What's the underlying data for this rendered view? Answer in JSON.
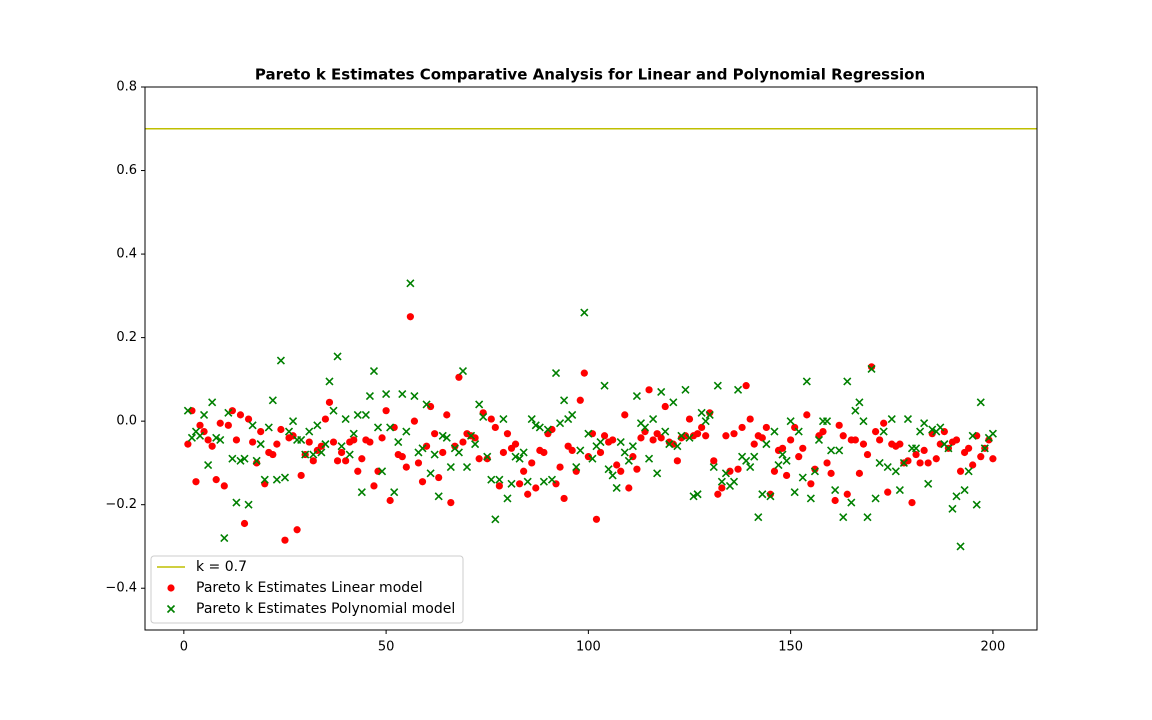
{
  "chart_data": {
    "type": "scatter",
    "title": "Pareto k Estimates Comparative Analysis for Linear and Polynomial Regression",
    "x": [
      1,
      2,
      3,
      4,
      5,
      6,
      7,
      8,
      9,
      10,
      11,
      12,
      13,
      14,
      15,
      16,
      17,
      18,
      19,
      20,
      21,
      22,
      23,
      24,
      25,
      26,
      27,
      28,
      29,
      30,
      31,
      32,
      33,
      34,
      35,
      36,
      37,
      38,
      39,
      40,
      41,
      42,
      43,
      44,
      45,
      46,
      47,
      48,
      49,
      50,
      51,
      52,
      53,
      54,
      55,
      56,
      57,
      58,
      59,
      60,
      61,
      62,
      63,
      64,
      65,
      66,
      67,
      68,
      69,
      70,
      71,
      72,
      73,
      74,
      75,
      76,
      77,
      78,
      79,
      80,
      81,
      82,
      83,
      84,
      85,
      86,
      87,
      88,
      89,
      90,
      91,
      92,
      93,
      94,
      95,
      96,
      97,
      98,
      99,
      100,
      101,
      102,
      103,
      104,
      105,
      106,
      107,
      108,
      109,
      110,
      111,
      112,
      113,
      114,
      115,
      116,
      117,
      118,
      119,
      120,
      121,
      122,
      123,
      124,
      125,
      126,
      127,
      128,
      129,
      130,
      131,
      132,
      133,
      134,
      135,
      136,
      137,
      138,
      139,
      140,
      141,
      142,
      143,
      144,
      145,
      146,
      147,
      148,
      149,
      150,
      151,
      152,
      153,
      154,
      155,
      156,
      157,
      158,
      159,
      160,
      161,
      162,
      163,
      164,
      165,
      166,
      167,
      168,
      169,
      170,
      171,
      172,
      173,
      174,
      175,
      176,
      177,
      178,
      179,
      180,
      181,
      182,
      183,
      184,
      185,
      186,
      187,
      188,
      189,
      190,
      191,
      192,
      193,
      194,
      195,
      196,
      197,
      198,
      199,
      200
    ],
    "series": [
      {
        "name": "Pareto k Estimates Linear model",
        "color": "#ff0000",
        "marker": "o",
        "values": [
          -0.055,
          0.025,
          -0.145,
          -0.01,
          -0.025,
          -0.045,
          -0.06,
          -0.14,
          -0.005,
          -0.155,
          -0.01,
          0.025,
          -0.045,
          0.015,
          -0.245,
          0.005,
          -0.05,
          -0.1,
          -0.025,
          -0.15,
          -0.075,
          -0.08,
          -0.055,
          -0.02,
          -0.285,
          -0.04,
          -0.035,
          -0.26,
          -0.13,
          -0.08,
          -0.05,
          -0.095,
          -0.07,
          -0.06,
          0.005,
          0.045,
          -0.05,
          -0.095,
          -0.075,
          -0.095,
          -0.05,
          -0.045,
          -0.12,
          -0.09,
          -0.045,
          -0.05,
          -0.155,
          -0.12,
          -0.04,
          0.025,
          -0.19,
          -0.015,
          -0.08,
          -0.085,
          -0.11,
          0.25,
          0.0,
          -0.1,
          -0.145,
          -0.06,
          0.035,
          -0.03,
          -0.135,
          -0.075,
          0.015,
          -0.195,
          -0.06,
          0.105,
          -0.05,
          -0.03,
          -0.035,
          -0.04,
          -0.09,
          0.02,
          -0.09,
          0.005,
          -0.015,
          -0.155,
          -0.075,
          -0.03,
          -0.065,
          -0.055,
          -0.15,
          -0.12,
          -0.175,
          -0.1,
          -0.16,
          -0.07,
          -0.075,
          -0.03,
          -0.02,
          -0.15,
          -0.11,
          -0.185,
          -0.06,
          -0.07,
          -0.12,
          0.05,
          0.115,
          -0.085,
          -0.03,
          -0.235,
          -0.075,
          -0.035,
          -0.05,
          -0.045,
          -0.105,
          -0.12,
          0.015,
          -0.16,
          -0.085,
          -0.115,
          -0.04,
          -0.025,
          0.075,
          -0.045,
          -0.03,
          -0.04,
          0.035,
          -0.05,
          -0.055,
          -0.095,
          -0.04,
          -0.035,
          0.005,
          -0.035,
          -0.03,
          -0.015,
          -0.035,
          0.02,
          -0.095,
          -0.175,
          -0.16,
          -0.035,
          -0.12,
          -0.03,
          -0.115,
          -0.015,
          0.085,
          0.005,
          -0.055,
          -0.035,
          -0.04,
          -0.015,
          -0.175,
          -0.12,
          -0.07,
          -0.065,
          -0.13,
          -0.045,
          -0.015,
          -0.085,
          -0.065,
          0.015,
          -0.15,
          -0.115,
          -0.035,
          -0.025,
          -0.1,
          -0.125,
          -0.19,
          -0.01,
          -0.035,
          -0.175,
          -0.045,
          -0.045,
          -0.125,
          -0.055,
          -0.08,
          0.13,
          -0.025,
          -0.045,
          -0.005,
          -0.17,
          -0.055,
          -0.06,
          -0.055,
          -0.1,
          -0.095,
          -0.195,
          -0.08,
          -0.1,
          -0.07,
          -0.1,
          -0.03,
          -0.09,
          -0.055,
          -0.025,
          -0.065,
          -0.05,
          -0.045,
          -0.12,
          -0.075,
          -0.065,
          -0.105,
          -0.035,
          -0.085,
          -0.065,
          -0.045,
          -0.09
        ]
      },
      {
        "name": "Pareto k Estimates Polynomial model",
        "color": "#008000",
        "marker": "x",
        "values": [
          0.025,
          -0.04,
          -0.025,
          -0.035,
          0.015,
          -0.105,
          0.045,
          -0.04,
          -0.045,
          -0.28,
          0.02,
          -0.09,
          -0.195,
          -0.095,
          -0.09,
          -0.2,
          -0.01,
          -0.095,
          -0.055,
          -0.14,
          -0.015,
          0.05,
          -0.14,
          0.145,
          -0.135,
          -0.025,
          0.0,
          -0.045,
          -0.045,
          -0.08,
          -0.025,
          -0.08,
          -0.01,
          -0.075,
          -0.055,
          0.095,
          0.025,
          0.155,
          -0.06,
          0.005,
          -0.08,
          -0.03,
          0.015,
          -0.17,
          0.015,
          0.06,
          0.12,
          -0.015,
          -0.12,
          0.065,
          -0.015,
          -0.17,
          -0.05,
          0.065,
          -0.025,
          0.33,
          0.06,
          -0.075,
          -0.065,
          0.04,
          -0.125,
          -0.08,
          -0.18,
          -0.035,
          -0.04,
          -0.11,
          -0.065,
          -0.075,
          0.12,
          -0.11,
          -0.035,
          -0.055,
          0.04,
          0.01,
          -0.085,
          -0.14,
          -0.235,
          -0.14,
          0.005,
          -0.185,
          -0.15,
          -0.085,
          -0.09,
          -0.075,
          -0.145,
          0.005,
          -0.01,
          -0.015,
          -0.145,
          -0.02,
          -0.14,
          0.115,
          -0.005,
          0.05,
          0.005,
          0.015,
          -0.11,
          -0.07,
          0.26,
          -0.03,
          -0.09,
          -0.06,
          -0.05,
          0.085,
          -0.115,
          -0.13,
          -0.16,
          -0.05,
          -0.075,
          -0.095,
          -0.06,
          0.06,
          -0.005,
          -0.015,
          -0.09,
          0.005,
          -0.125,
          0.07,
          -0.025,
          -0.055,
          0.045,
          -0.06,
          -0.035,
          0.075,
          -0.04,
          -0.18,
          -0.175,
          0.02,
          0.0,
          0.015,
          -0.11,
          0.085,
          -0.145,
          -0.125,
          -0.155,
          -0.145,
          0.075,
          -0.085,
          -0.095,
          -0.11,
          -0.085,
          -0.23,
          -0.175,
          -0.055,
          -0.18,
          -0.025,
          -0.105,
          -0.08,
          -0.095,
          0.0,
          -0.17,
          -0.025,
          -0.135,
          0.095,
          -0.185,
          -0.12,
          -0.045,
          0.0,
          0.0,
          -0.07,
          -0.165,
          -0.07,
          -0.23,
          0.095,
          -0.195,
          0.025,
          0.045,
          0.0,
          -0.23,
          0.125,
          -0.185,
          -0.1,
          -0.025,
          -0.11,
          0.005,
          -0.12,
          -0.165,
          -0.1,
          0.005,
          -0.065,
          -0.065,
          -0.025,
          -0.005,
          -0.15,
          -0.02,
          -0.025,
          -0.015,
          -0.055,
          -0.065,
          -0.21,
          -0.18,
          -0.3,
          -0.165,
          -0.12,
          -0.035,
          -0.2,
          0.045,
          -0.065,
          -0.04,
          -0.03
        ]
      }
    ],
    "hline": {
      "y": 0.7,
      "label": "k = 0.7",
      "color": "#bfbf00"
    },
    "xlim": [
      -9.6,
      210.9
    ],
    "ylim": [
      -0.5,
      0.8
    ],
    "xticks": [
      0,
      50,
      100,
      150,
      200
    ],
    "yticks": [
      {
        "value": -0.4,
        "label": "−0.4"
      },
      {
        "value": -0.2,
        "label": "−0.2"
      },
      {
        "value": 0,
        "label": "0.0"
      },
      0.2,
      0.4,
      0.6,
      0.8
    ],
    "legend": "lower left"
  }
}
